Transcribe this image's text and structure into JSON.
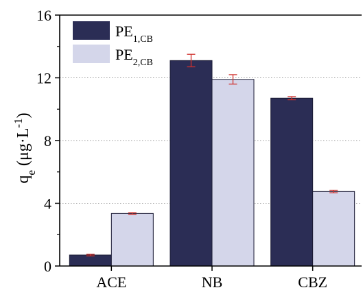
{
  "chart_data": {
    "type": "bar",
    "categories": [
      "ACE",
      "NB",
      "CBZ"
    ],
    "series": [
      {
        "name": "PE",
        "name_sub": "1,CB",
        "color": "#2b2d55",
        "values": [
          0.7,
          13.1,
          10.7
        ],
        "errors": [
          0.05,
          0.4,
          0.1
        ]
      },
      {
        "name": "PE",
        "name_sub": "2,CB",
        "color": "#d4d6ea",
        "values": [
          3.35,
          11.9,
          4.75
        ],
        "errors": [
          0.05,
          0.3,
          0.08
        ]
      }
    ],
    "ylabel": {
      "q": "q",
      "q_sub": "e",
      "open": " (μg·L",
      "sup": "-1",
      "close": ")"
    },
    "ylim": [
      0,
      16
    ],
    "yticks": [
      "0",
      "4",
      "8",
      "12",
      "16"
    ],
    "grid": "horizontal-dotted",
    "legend_position": "top-left",
    "error_bar_color": "#d0312d"
  }
}
